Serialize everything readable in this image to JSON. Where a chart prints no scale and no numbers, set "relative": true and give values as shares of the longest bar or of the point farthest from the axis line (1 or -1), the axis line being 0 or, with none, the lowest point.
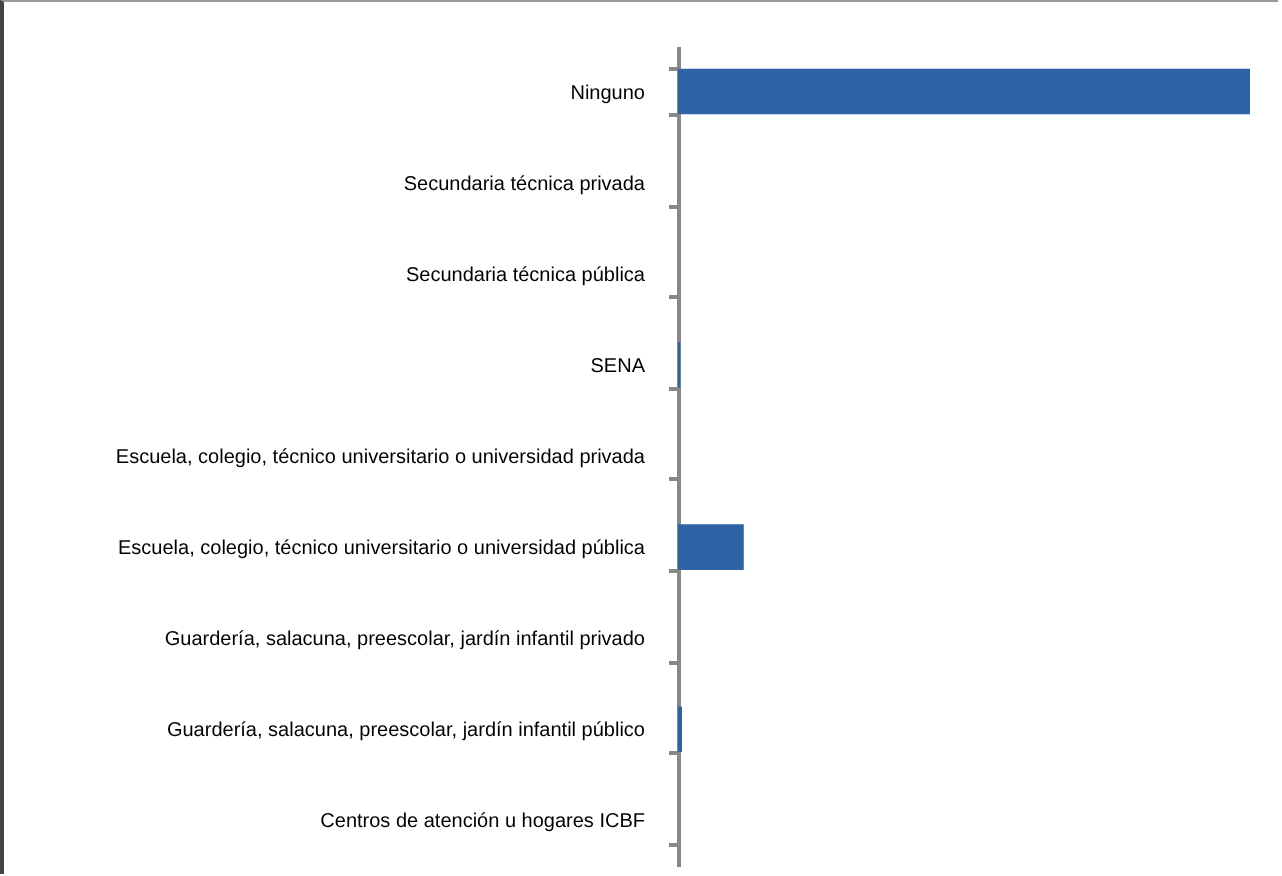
{
  "chart_data": {
    "type": "bar",
    "orientation": "horizontal",
    "relative": true,
    "categories": [
      "Ninguno",
      "Secundaria técnica privada",
      "Secundaria técnica pública",
      "SENA",
      "Escuela, colegio, técnico universitario o universidad privada",
      "Escuela, colegio, técnico universitario o universidad pública",
      "Guardería, salacuna, preescolar, jardín infantil privado",
      "Guardería, salacuna, preescolar, jardín infantil público",
      "Centros de atención u hogares ICBF"
    ],
    "values": [
      1,
      0,
      0,
      0.004,
      0,
      0.115,
      0,
      0.007,
      0
    ],
    "color": "#2e63a6"
  }
}
